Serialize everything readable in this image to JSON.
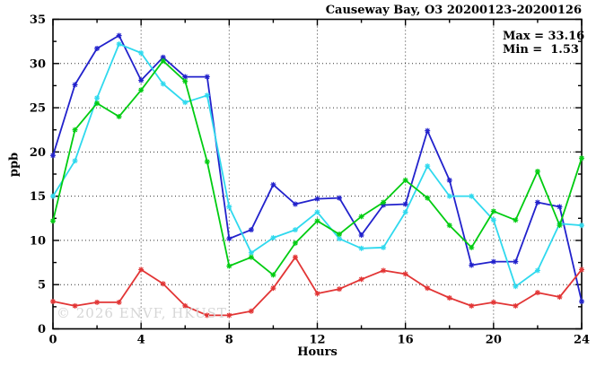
{
  "title": "Causeway Bay, O3 20200123-20200126",
  "annotation": {
    "max_label": "Max = 33.16",
    "min_label": "Min =  1.53"
  },
  "watermark": "© 2026 ENVF, HKUST",
  "axes": {
    "x_label": "Hours",
    "y_label": "ppb"
  },
  "chart_data": {
    "type": "line",
    "title": "Causeway Bay, O3 20200123-20200126",
    "xlabel": "Hours",
    "ylabel": "ppb",
    "xlim": [
      0,
      24
    ],
    "ylim": [
      0,
      35
    ],
    "x_major_ticks": [
      0,
      4,
      8,
      12,
      16,
      20,
      24
    ],
    "x_minor_step": 2,
    "y_major_ticks": [
      0,
      5,
      10,
      15,
      20,
      25,
      30,
      35
    ],
    "y_minor_step": 2.5,
    "grid": true,
    "legend_position": "none",
    "stat_max": 33.16,
    "stat_min": 1.53,
    "x": [
      0,
      1,
      2,
      3,
      4,
      5,
      6,
      7,
      8,
      9,
      10,
      11,
      12,
      13,
      14,
      15,
      16,
      17,
      18,
      19,
      20,
      21,
      22,
      23,
      24
    ],
    "series": [
      {
        "name": "series-blue",
        "color": "#2222cc",
        "values": [
          19.6,
          27.6,
          31.7,
          33.16,
          28.1,
          30.7,
          28.5,
          28.5,
          10.2,
          11.2,
          16.3,
          14.1,
          14.7,
          14.8,
          10.6,
          14.0,
          14.1,
          22.4,
          16.8,
          7.2,
          7.6,
          7.6,
          14.3,
          13.8,
          3.1
        ]
      },
      {
        "name": "series-cyan",
        "color": "#2fd9ee",
        "values": [
          15.0,
          19.0,
          26.1,
          32.2,
          31.2,
          27.7,
          25.6,
          26.4,
          13.8,
          8.6,
          10.3,
          11.2,
          13.2,
          10.2,
          9.1,
          9.2,
          13.2,
          18.4,
          15.0,
          15.0,
          12.3,
          4.8,
          6.6,
          11.9,
          11.7
        ]
      },
      {
        "name": "series-green",
        "color": "#00cc11",
        "values": [
          12.2,
          22.5,
          25.5,
          24.0,
          27.0,
          30.3,
          28.0,
          18.9,
          7.1,
          8.1,
          6.1,
          9.7,
          12.2,
          10.7,
          12.7,
          14.3,
          16.8,
          14.8,
          11.7,
          9.2,
          13.3,
          12.3,
          17.8,
          11.7,
          19.3
        ]
      },
      {
        "name": "series-red",
        "color": "#e23535",
        "values": [
          3.1,
          2.6,
          3.0,
          3.0,
          6.7,
          5.1,
          2.6,
          1.53,
          1.53,
          2.0,
          4.6,
          8.1,
          4.0,
          4.5,
          5.6,
          6.6,
          6.2,
          4.6,
          3.5,
          2.6,
          3.0,
          2.6,
          4.1,
          3.6,
          6.7
        ]
      }
    ]
  }
}
